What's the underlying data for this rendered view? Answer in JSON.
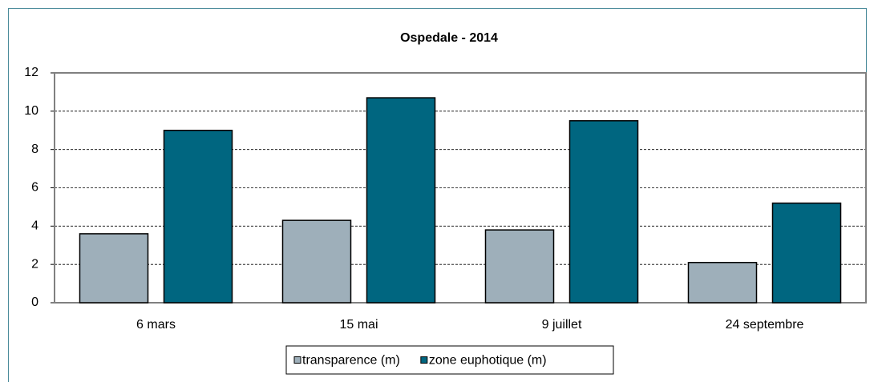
{
  "chart_data": {
    "type": "bar",
    "title": "Ospedale  - 2014",
    "categories": [
      "6 mars",
      "15 mai",
      "9 juillet",
      "24 septembre"
    ],
    "series": [
      {
        "name": "transparence (m)",
        "color": "#9eafba",
        "values": [
          3.6,
          4.3,
          3.8,
          2.1
        ]
      },
      {
        "name": "zone euphotique (m)",
        "color": "#006680",
        "values": [
          9.0,
          10.7,
          9.5,
          5.2
        ]
      }
    ],
    "ylim": [
      0,
      12
    ],
    "yticks": [
      0,
      2,
      4,
      6,
      8,
      10,
      12
    ],
    "grid": true,
    "legend": "bottom"
  }
}
